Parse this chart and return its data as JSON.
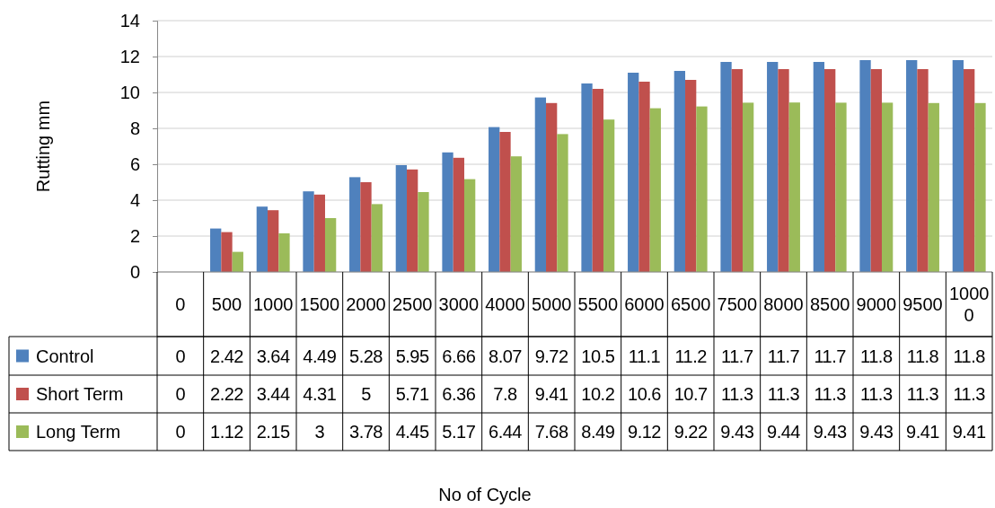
{
  "chart_data": {
    "type": "bar",
    "annotations": [
      "No of Cycle"
    ],
    "ylabel": "Rutting mm",
    "categories": [
      "0",
      "500",
      "1000",
      "1500",
      "2000",
      "2500",
      "3000",
      "4000",
      "5000",
      "5500",
      "6000",
      "6500",
      "7500",
      "8000",
      "8500",
      "9000",
      "9500",
      "10000"
    ],
    "series": [
      {
        "name": "Control",
        "color": "#4f81bd",
        "values": [
          0,
          2.42,
          3.64,
          4.49,
          5.28,
          5.95,
          6.66,
          8.07,
          9.72,
          10.5,
          11.1,
          11.2,
          11.7,
          11.7,
          11.7,
          11.8,
          11.8,
          11.8
        ]
      },
      {
        "name": "Short Term",
        "color": "#c0504d",
        "values": [
          0,
          2.22,
          3.44,
          4.31,
          5,
          5.71,
          6.36,
          7.8,
          9.41,
          10.2,
          10.6,
          10.7,
          11.3,
          11.3,
          11.3,
          11.3,
          11.3,
          11.3
        ]
      },
      {
        "name": "Long Term",
        "color": "#9bbb59",
        "values": [
          0,
          1.12,
          2.15,
          3,
          3.78,
          4.45,
          5.17,
          6.44,
          7.68,
          8.49,
          9.12,
          9.22,
          9.43,
          9.44,
          9.43,
          9.43,
          9.41,
          9.41
        ]
      }
    ],
    "ylim": [
      0,
      14
    ],
    "yticks": [
      0,
      2,
      4,
      6,
      8,
      10,
      12,
      14
    ],
    "grid": "y",
    "legend": "left",
    "data_labels": true
  }
}
